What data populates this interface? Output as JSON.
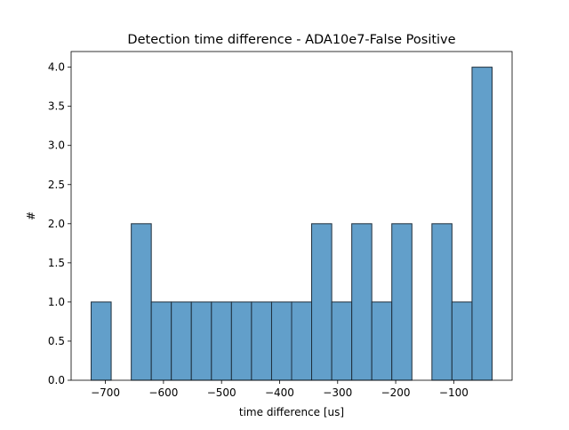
{
  "chart_data": {
    "type": "histogram",
    "title": "Detection time difference - ADA10e7-False Positive",
    "xlabel": "time difference [us]",
    "ylabel": "#",
    "bins": [
      -724.6,
      -690.1,
      -655.5,
      -621.0,
      -586.5,
      -552.0,
      -517.4,
      -482.9,
      -448.4,
      -413.8,
      -379.3,
      -344.8,
      -310.2,
      -275.7,
      -241.2,
      -206.7,
      -172.1,
      -137.6,
      -103.1,
      -68.5,
      -34.0
    ],
    "counts": [
      1,
      0,
      2,
      1,
      1,
      1,
      1,
      1,
      1,
      1,
      1,
      2,
      1,
      2,
      1,
      2,
      0,
      2,
      1,
      4
    ],
    "color": "#629fca",
    "edgecolor": "#1f2f3d",
    "xlim": [
      -759.1,
      0.5
    ],
    "xticks": [
      {
        "value": -700,
        "label": "−700"
      },
      {
        "value": -600,
        "label": "−600"
      },
      {
        "value": -500,
        "label": "−500"
      },
      {
        "value": -400,
        "label": "−400"
      },
      {
        "value": -300,
        "label": "−300"
      },
      {
        "value": -200,
        "label": "−200"
      },
      {
        "value": -100,
        "label": "−100"
      }
    ],
    "ylim": [
      0,
      4.2
    ],
    "yticks": [
      {
        "value": 0,
        "label": "0.0"
      },
      {
        "value": 0.5,
        "label": "0.5"
      },
      {
        "value": 1,
        "label": "1.0"
      },
      {
        "value": 1.5,
        "label": "1.5"
      },
      {
        "value": 2,
        "label": "2.0"
      },
      {
        "value": 2.5,
        "label": "2.5"
      },
      {
        "value": 3,
        "label": "3.0"
      },
      {
        "value": 3.5,
        "label": "3.5"
      },
      {
        "value": 4,
        "label": "4.0"
      }
    ],
    "grid": false
  }
}
